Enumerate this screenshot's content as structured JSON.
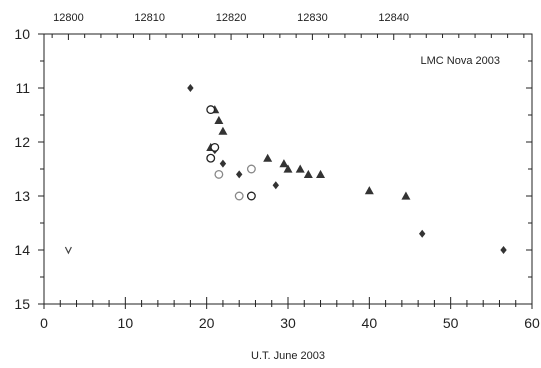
{
  "chart_data": {
    "type": "scatter",
    "title": "",
    "xlabel": "U.T. June 2003",
    "ylabel": "",
    "annotation": "LMC Nova 2003",
    "xlim": [
      0,
      60
    ],
    "ylim": [
      15,
      10
    ],
    "y_inverted": true,
    "x_ticks": [
      0,
      10,
      20,
      30,
      40,
      50,
      60
    ],
    "y_ticks": [
      10,
      11,
      12,
      13,
      14,
      15
    ],
    "top_axis": {
      "ticks": [
        12800,
        12810,
        12820,
        12830,
        12840
      ],
      "offset": 12797
    },
    "grid": false,
    "series": [
      {
        "marker": "filled-diamond",
        "points": [
          {
            "x": 18,
            "y": 11.0
          },
          {
            "x": 21,
            "y": 12.15
          },
          {
            "x": 22,
            "y": 12.4
          },
          {
            "x": 24,
            "y": 12.6
          },
          {
            "x": 28.5,
            "y": 12.8
          },
          {
            "x": 46.5,
            "y": 13.7
          },
          {
            "x": 56.5,
            "y": 14.0
          }
        ]
      },
      {
        "marker": "filled-triangle",
        "points": [
          {
            "x": 20.5,
            "y": 12.1
          },
          {
            "x": 21,
            "y": 11.4
          },
          {
            "x": 21.5,
            "y": 11.6
          },
          {
            "x": 22,
            "y": 11.8
          },
          {
            "x": 27.5,
            "y": 12.3
          },
          {
            "x": 29.5,
            "y": 12.4
          },
          {
            "x": 30,
            "y": 12.5
          },
          {
            "x": 31.5,
            "y": 12.5
          },
          {
            "x": 32.5,
            "y": 12.6
          },
          {
            "x": 34,
            "y": 12.6
          },
          {
            "x": 40,
            "y": 12.9
          },
          {
            "x": 44.5,
            "y": 13.0
          }
        ]
      },
      {
        "marker": "open-circle-black",
        "points": [
          {
            "x": 20.5,
            "y": 11.4
          },
          {
            "x": 20.5,
            "y": 12.3
          },
          {
            "x": 21,
            "y": 12.1
          },
          {
            "x": 25.5,
            "y": 13.0
          }
        ]
      },
      {
        "marker": "open-circle-gray",
        "points": [
          {
            "x": 21.5,
            "y": 12.6
          },
          {
            "x": 24,
            "y": 13.0
          },
          {
            "x": 25.5,
            "y": 12.5
          }
        ]
      },
      {
        "marker": "upper-limit",
        "points": [
          {
            "x": 3,
            "y": 14.0
          }
        ]
      }
    ]
  }
}
